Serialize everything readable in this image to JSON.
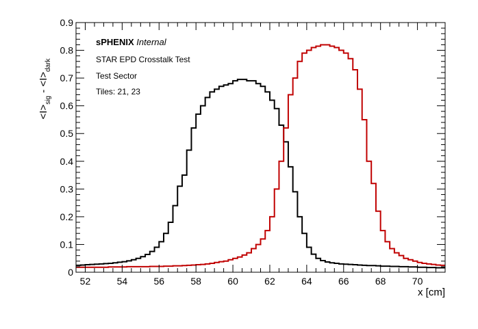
{
  "chart_data": {
    "type": "line",
    "style": "step-histogram",
    "xlabel": "x [cm]",
    "ylabel": {
      "main_a": "<I>",
      "sub_a": "sig",
      "minus": " - ",
      "main_b": "<I>",
      "sub_b": "dark"
    },
    "xlim": [
      51.5,
      71.5
    ],
    "ylim": [
      0,
      0.9
    ],
    "x_ticks": [
      52,
      54,
      56,
      58,
      60,
      62,
      64,
      66,
      68,
      70
    ],
    "y_ticks": [
      0,
      0.1,
      0.2,
      0.3,
      0.4,
      0.5,
      0.6,
      0.7,
      0.8,
      0.9
    ],
    "y_tick_labels": [
      "0",
      "0.1",
      "0.2",
      "0.3",
      "0.4",
      "0.5",
      "0.6",
      "0.7",
      "0.8",
      "0.9"
    ],
    "grid": false,
    "annotations": {
      "brand": "sPHENIX",
      "brand_suffix": "Internal",
      "line1": "STAR EPD Crosstalk Test",
      "line2": "Test Sector",
      "line3": "Tiles: 21, 23"
    },
    "bin_width": 0.25,
    "x_start": 51.5,
    "series": [
      {
        "color": "#000000",
        "values": [
          0.025,
          0.026,
          0.027,
          0.028,
          0.029,
          0.03,
          0.031,
          0.032,
          0.034,
          0.036,
          0.038,
          0.041,
          0.045,
          0.05,
          0.056,
          0.064,
          0.075,
          0.09,
          0.11,
          0.14,
          0.18,
          0.24,
          0.31,
          0.35,
          0.44,
          0.52,
          0.57,
          0.6,
          0.63,
          0.65,
          0.66,
          0.67,
          0.675,
          0.68,
          0.69,
          0.695,
          0.695,
          0.69,
          0.69,
          0.68,
          0.67,
          0.65,
          0.62,
          0.59,
          0.53,
          0.47,
          0.38,
          0.29,
          0.2,
          0.14,
          0.09,
          0.065,
          0.05,
          0.042,
          0.037,
          0.034,
          0.032,
          0.03,
          0.029,
          0.028,
          0.027,
          0.026,
          0.025,
          0.024,
          0.024,
          0.023,
          0.022,
          0.022,
          0.021,
          0.021,
          0.02,
          0.02,
          0.019,
          0.019,
          0.018,
          0.018,
          0.017,
          0.017,
          0.016,
          0.016
        ]
      },
      {
        "color": "#c00000",
        "values": [
          0.018,
          0.018,
          0.018,
          0.018,
          0.018,
          0.018,
          0.018,
          0.019,
          0.019,
          0.019,
          0.019,
          0.02,
          0.02,
          0.02,
          0.02,
          0.02,
          0.021,
          0.021,
          0.021,
          0.022,
          0.022,
          0.023,
          0.023,
          0.024,
          0.025,
          0.026,
          0.027,
          0.028,
          0.03,
          0.032,
          0.035,
          0.038,
          0.04,
          0.045,
          0.05,
          0.055,
          0.062,
          0.07,
          0.085,
          0.1,
          0.12,
          0.15,
          0.2,
          0.3,
          0.4,
          0.52,
          0.64,
          0.7,
          0.76,
          0.79,
          0.8,
          0.81,
          0.815,
          0.82,
          0.82,
          0.815,
          0.81,
          0.8,
          0.79,
          0.77,
          0.73,
          0.66,
          0.55,
          0.4,
          0.32,
          0.22,
          0.15,
          0.11,
          0.085,
          0.07,
          0.06,
          0.05,
          0.045,
          0.04,
          0.035,
          0.032,
          0.03,
          0.028,
          0.026,
          0.025
        ]
      }
    ]
  }
}
